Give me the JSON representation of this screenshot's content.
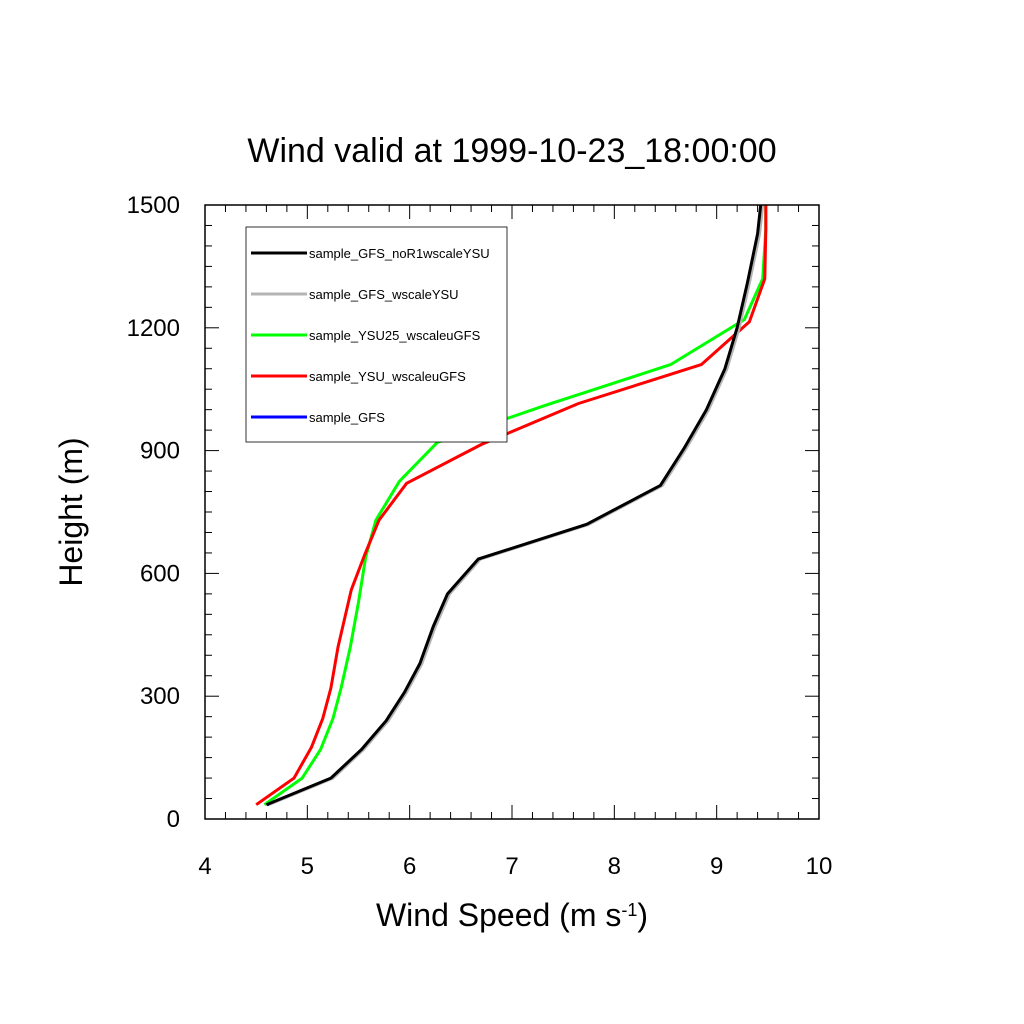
{
  "chart_data": {
    "type": "line",
    "title": "Wind valid at 1999-10-23_18:00:00",
    "xlabel": "Wind Speed (m s",
    "xlabel_sup": "-1",
    "xlabel_close": ")",
    "ylabel": "Height (m)",
    "xlim": [
      4,
      10
    ],
    "ylim": [
      0,
      1500
    ],
    "xticks": [
      "4",
      "5",
      "6",
      "7",
      "8",
      "9",
      "10"
    ],
    "yticks": [
      "0",
      "300",
      "600",
      "900",
      "1200",
      "1500"
    ],
    "legend_position": "top-left",
    "series": [
      {
        "name": "sample_GFS_noR1wscaleYSU",
        "color": "#000000",
        "points": [
          [
            4.6,
            35
          ],
          [
            5.23,
            100
          ],
          [
            5.53,
            170
          ],
          [
            5.77,
            240
          ],
          [
            5.95,
            310
          ],
          [
            6.1,
            380
          ],
          [
            6.23,
            470
          ],
          [
            6.37,
            550
          ],
          [
            6.67,
            635
          ],
          [
            7.73,
            720
          ],
          [
            8.45,
            815
          ],
          [
            8.68,
            905
          ],
          [
            8.9,
            1000
          ],
          [
            9.08,
            1100
          ],
          [
            9.2,
            1200
          ],
          [
            9.3,
            1310
          ],
          [
            9.4,
            1430
          ],
          [
            9.43,
            1500
          ]
        ]
      },
      {
        "name": "sample_GFS_wscaleYSU",
        "color": "#b4b4b4",
        "points": [
          [
            4.62,
            35
          ],
          [
            5.25,
            100
          ],
          [
            5.55,
            170
          ],
          [
            5.79,
            240
          ],
          [
            5.97,
            310
          ],
          [
            6.12,
            380
          ],
          [
            6.25,
            470
          ],
          [
            6.39,
            550
          ],
          [
            6.69,
            635
          ],
          [
            7.75,
            720
          ],
          [
            8.47,
            815
          ],
          [
            8.7,
            905
          ],
          [
            8.92,
            1000
          ],
          [
            9.1,
            1100
          ],
          [
            9.22,
            1200
          ],
          [
            9.32,
            1310
          ],
          [
            9.42,
            1430
          ],
          [
            9.45,
            1500
          ]
        ]
      },
      {
        "name": "sample_YSU25_wscaleuGFS",
        "color": "#00ff00",
        "points": [
          [
            4.58,
            35
          ],
          [
            4.95,
            100
          ],
          [
            5.13,
            170
          ],
          [
            5.25,
            245
          ],
          [
            5.33,
            320
          ],
          [
            5.42,
            420
          ],
          [
            5.5,
            530
          ],
          [
            5.57,
            640
          ],
          [
            5.67,
            730
          ],
          [
            5.9,
            825
          ],
          [
            6.27,
            920
          ],
          [
            7.32,
            1010
          ],
          [
            8.55,
            1110
          ],
          [
            9.27,
            1220
          ],
          [
            9.45,
            1320
          ],
          [
            9.48,
            1440
          ],
          [
            9.48,
            1500
          ]
        ]
      },
      {
        "name": "sample_YSU_wscaleuGFS",
        "color": "#ff0000",
        "points": [
          [
            4.5,
            35
          ],
          [
            4.87,
            100
          ],
          [
            5.04,
            175
          ],
          [
            5.15,
            245
          ],
          [
            5.23,
            320
          ],
          [
            5.3,
            420
          ],
          [
            5.43,
            560
          ],
          [
            5.56,
            645
          ],
          [
            5.7,
            730
          ],
          [
            5.97,
            820
          ],
          [
            6.7,
            915
          ],
          [
            7.65,
            1015
          ],
          [
            8.85,
            1110
          ],
          [
            9.32,
            1215
          ],
          [
            9.47,
            1320
          ],
          [
            9.48,
            1440
          ],
          [
            9.48,
            1500
          ]
        ]
      },
      {
        "name": "sample_GFS",
        "color": "#0000ff",
        "points": [
          [
            4.61,
            35
          ],
          [
            5.24,
            100
          ],
          [
            5.54,
            170
          ],
          [
            5.78,
            240
          ],
          [
            5.96,
            310
          ],
          [
            6.11,
            380
          ],
          [
            6.24,
            470
          ],
          [
            6.38,
            550
          ],
          [
            6.68,
            635
          ],
          [
            7.74,
            720
          ],
          [
            8.46,
            815
          ],
          [
            8.69,
            905
          ],
          [
            8.91,
            1000
          ],
          [
            9.09,
            1100
          ],
          [
            9.21,
            1200
          ],
          [
            9.31,
            1310
          ],
          [
            9.41,
            1430
          ],
          [
            9.44,
            1500
          ]
        ]
      }
    ]
  }
}
